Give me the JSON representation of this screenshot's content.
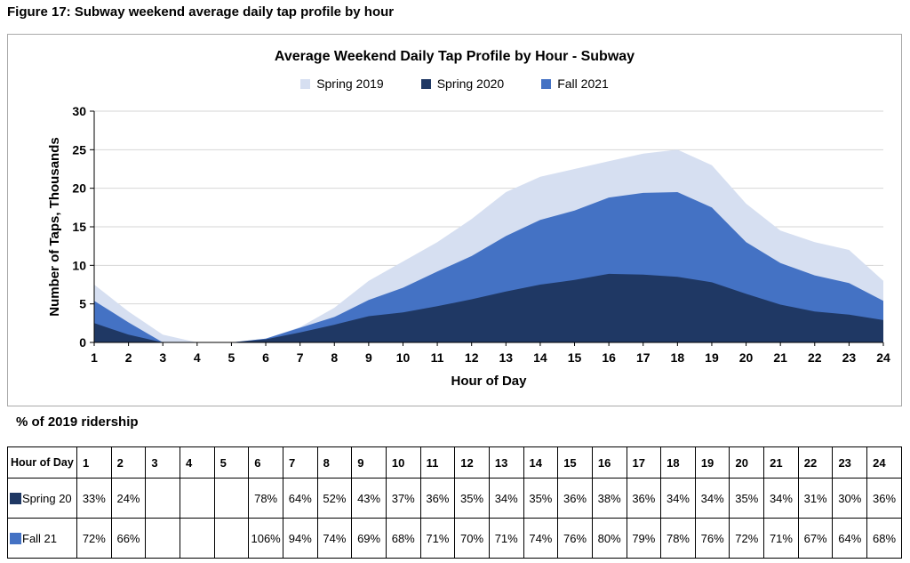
{
  "page": {
    "figure_title": "Figure 17: Subway weekend average daily tap profile by hour",
    "table_caption": "% of 2019 ridership"
  },
  "chart_data": {
    "type": "area",
    "title": "Average Weekend Daily Tap Profile by Hour - Subway",
    "xlabel": "Hour of Day",
    "ylabel": "Number of Taps, Thousands",
    "ylim": [
      0,
      30
    ],
    "yticks": [
      0,
      5,
      10,
      15,
      20,
      25,
      30
    ],
    "grid": true,
    "legend_position": "top",
    "x": [
      1,
      2,
      3,
      4,
      5,
      6,
      7,
      8,
      9,
      10,
      11,
      12,
      13,
      14,
      15,
      16,
      17,
      18,
      19,
      20,
      21,
      22,
      23,
      24
    ],
    "series": [
      {
        "name": "Spring 2019",
        "color": "#D6DFF1",
        "values": [
          7.5,
          4,
          1,
          0,
          0,
          0.5,
          2,
          4.5,
          8,
          10.5,
          13,
          16,
          19.5,
          21.5,
          22.5,
          23.5,
          24.5,
          25,
          23,
          18,
          14.5,
          13,
          12,
          8
        ]
      },
      {
        "name": "Spring 2020",
        "color": "#1F3864",
        "values": [
          2.5,
          1,
          0,
          0,
          0,
          0.4,
          1.3,
          2.3,
          3.4,
          3.9,
          4.7,
          5.6,
          6.6,
          7.5,
          8.1,
          8.9,
          8.8,
          8.5,
          7.8,
          6.3,
          4.9,
          4,
          3.6,
          2.9
        ]
      },
      {
        "name": "Fall 2021",
        "color": "#4472C4",
        "values": [
          5.4,
          2.6,
          0,
          0,
          0,
          0.5,
          1.9,
          3.3,
          5.5,
          7.1,
          9.2,
          11.2,
          13.8,
          15.9,
          17.1,
          18.8,
          19.4,
          19.5,
          17.5,
          13,
          10.3,
          8.7,
          7.7,
          5.4
        ]
      }
    ]
  },
  "table": {
    "corner_label": "Hour of Day",
    "hours": [
      "1",
      "2",
      "3",
      "4",
      "5",
      "6",
      "7",
      "8",
      "9",
      "10",
      "11",
      "12",
      "13",
      "14",
      "15",
      "16",
      "17",
      "18",
      "19",
      "20",
      "21",
      "22",
      "23",
      "24"
    ],
    "rows": [
      {
        "label": "Spring 20",
        "color": "#1F3864",
        "values": [
          "33%",
          "24%",
          "",
          "",
          "",
          "78%",
          "64%",
          "52%",
          "43%",
          "37%",
          "36%",
          "35%",
          "34%",
          "35%",
          "36%",
          "38%",
          "36%",
          "34%",
          "34%",
          "35%",
          "34%",
          "31%",
          "30%",
          "36%"
        ]
      },
      {
        "label": "Fall 21",
        "color": "#4472C4",
        "values": [
          "72%",
          "66%",
          "",
          "",
          "",
          "106%",
          "94%",
          "74%",
          "69%",
          "68%",
          "71%",
          "70%",
          "71%",
          "74%",
          "76%",
          "80%",
          "79%",
          "78%",
          "76%",
          "72%",
          "71%",
          "67%",
          "64%",
          "68%"
        ]
      }
    ]
  }
}
